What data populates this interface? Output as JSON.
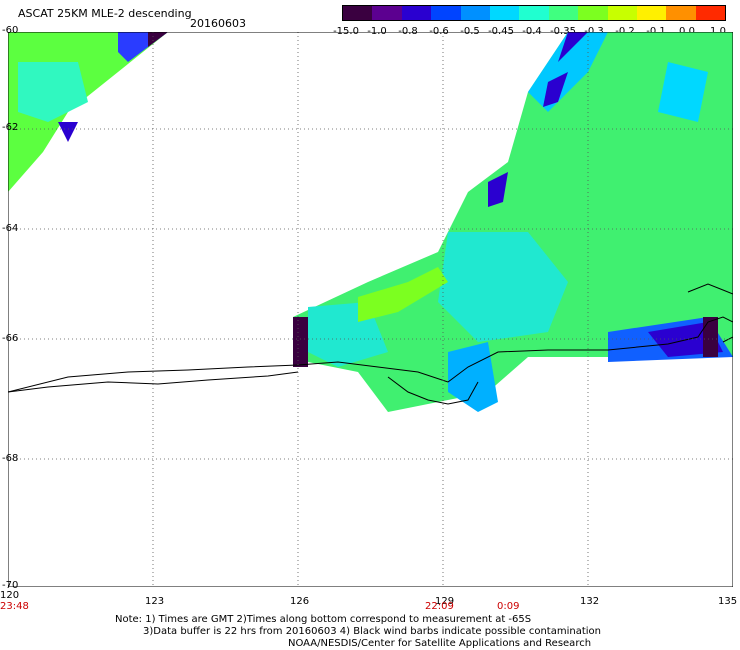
{
  "title": "ASCAT 25KM MLE-2 descending",
  "date": "20160603",
  "colorbar": {
    "labels": [
      "-15.0",
      "-1.0",
      "-0.8",
      "-0.6",
      "-0.5",
      "-0.45",
      "-0.4",
      "-0.35",
      "-0.3",
      "-0.2",
      "-0.1",
      "0.0",
      "1.0"
    ],
    "colors": [
      "#3a0040",
      "#5c0090",
      "#2a00d0",
      "#0044ff",
      "#0090ff",
      "#00d8ff",
      "#20ffd0",
      "#40ff80",
      "#7cff20",
      "#c8ff00",
      "#fff000",
      "#ff9000",
      "#ff2a00"
    ]
  },
  "axes": {
    "lat_labels": [
      "-60",
      "-62",
      "-64",
      "-66",
      "-68",
      "-70"
    ],
    "lon_labels": [
      "120",
      "123",
      "126",
      "129",
      "132",
      "135"
    ],
    "lat_range": [
      -70,
      -60
    ],
    "lon_range": [
      120,
      135
    ]
  },
  "times": [
    "23:48",
    "22:09",
    "0:09"
  ],
  "notes": [
    "Note: 1) Times are GMT 2)Times along bottom correspond to measurement at -65S",
    "3)Data buffer is 22 hrs from 20160603 4) Black wind barbs indicate possible contamination",
    "NOAA/NESDIS/Center for Satellite Applications and Research"
  ]
}
